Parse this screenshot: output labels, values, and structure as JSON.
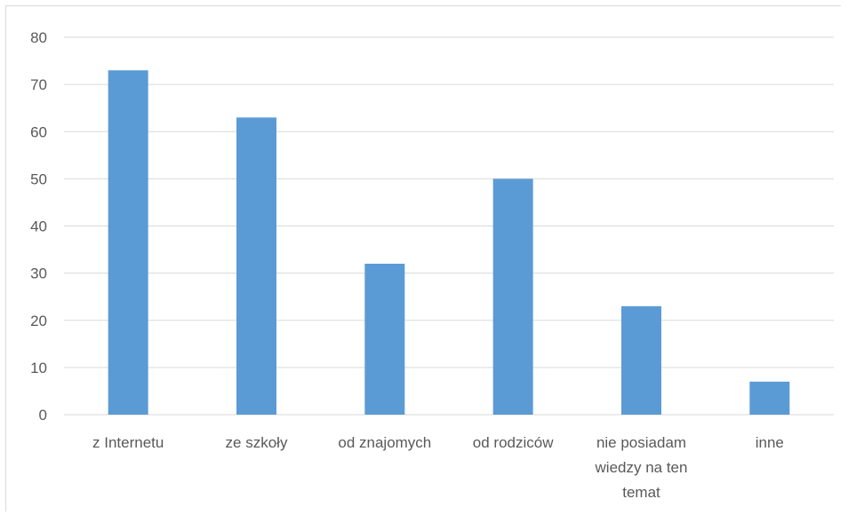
{
  "chart_data": {
    "type": "bar",
    "categories": [
      "z Internetu",
      "ze szkoły",
      "od znajomych",
      "od rodziców",
      "nie posiadam wiedzy na ten temat",
      "inne"
    ],
    "category_lines": [
      [
        "z Internetu"
      ],
      [
        "ze szkoły"
      ],
      [
        "od znajomych"
      ],
      [
        "od rodziców"
      ],
      [
        "nie posiadam",
        "wiedzy na ten",
        "temat"
      ],
      [
        "inne"
      ]
    ],
    "values": [
      73,
      63,
      32,
      50,
      23,
      7
    ],
    "title": "",
    "xlabel": "",
    "ylabel": "",
    "ylim": [
      0,
      80
    ],
    "yticks": [
      0,
      10,
      20,
      30,
      40,
      50,
      60,
      70,
      80
    ],
    "grid": true,
    "legend": "none",
    "bar_color": "#5b9bd5",
    "grid_color": "#d9d9d9"
  }
}
